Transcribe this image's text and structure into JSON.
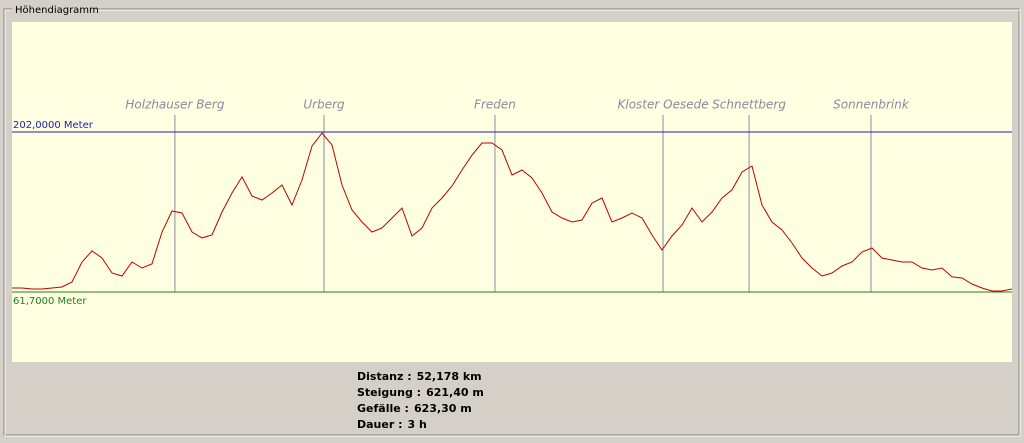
{
  "groupbox": {
    "title": "Höhendiagramm"
  },
  "chart_data": {
    "type": "line",
    "xlim": [
      0,
      52.178
    ],
    "ylim": [
      0.3,
      298.5
    ],
    "yticks": [
      {
        "value": 202,
        "label": "202,0000 Meter",
        "color": "#2020c0"
      },
      {
        "value": 61.7,
        "label": "61,7000 Meter",
        "color": "#208020"
      }
    ],
    "color": "#c00000",
    "values": [
      65.2,
      65.2,
      64.3,
      64.3,
      65.2,
      66.1,
      70.5,
      88.0,
      97.7,
      91.5,
      78.4,
      75.7,
      88.0,
      82.7,
      86.3,
      114.3,
      132.7,
      131.0,
      114.3,
      109.1,
      111.7,
      131.9,
      148.5,
      162.6,
      145.9,
      142.4,
      148.5,
      155.5,
      138.0,
      159.9,
      189.7,
      201.1,
      190.6,
      155.5,
      133.6,
      123.1,
      114.3,
      117.8,
      126.6,
      135.4,
      110.8,
      117.8,
      135.4,
      144.1,
      154.7,
      168.7,
      181.8,
      192.4,
      192.4,
      186.2,
      164.3,
      168.7,
      161.7,
      148.5,
      131.9,
      126.6,
      123.1,
      124.8,
      139.7,
      144.1,
      123.1,
      126.6,
      131.0,
      126.6,
      111.7,
      98.5,
      110.8,
      120.5,
      135.4,
      123.1,
      131.9,
      144.1,
      151.2,
      166.9,
      172.2,
      138.0,
      123.1,
      116.1,
      104.7,
      91.5,
      82.7,
      75.7,
      78.4,
      84.5,
      88.0,
      96.8,
      100.3,
      91.5,
      89.8,
      88.0,
      88.0,
      82.7,
      81.0,
      82.7,
      74.9,
      74.0,
      68.7,
      65.2,
      62.6,
      62.6,
      64.3
    ],
    "waypoints": [
      {
        "name": "Holzhauser Berg",
        "x": 8.5
      },
      {
        "name": "Urberg",
        "x": 16.28
      },
      {
        "name": "Freden",
        "x": 25.2
      },
      {
        "name": "Kloster Oesede",
        "x": 33.97
      },
      {
        "name": "Schnettberg",
        "x": 38.46
      },
      {
        "name": "Sonnenbrink",
        "x": 44.82
      }
    ]
  },
  "stats": [
    {
      "label": "Distanz :",
      "value": "52,178 km"
    },
    {
      "label": "Steigung :",
      "value": "621,40 m"
    },
    {
      "label": "Gefälle :",
      "value": "623,30 m"
    },
    {
      "label": "Dauer :",
      "value": "3 h"
    }
  ]
}
